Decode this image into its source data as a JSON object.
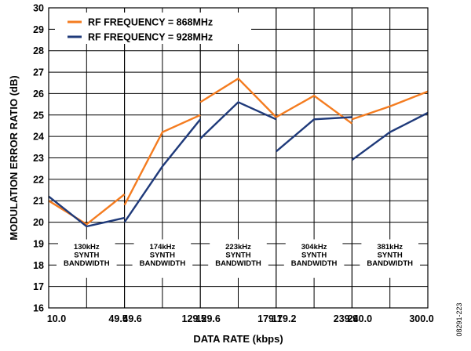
{
  "chart_data": {
    "type": "line",
    "xlabel": "DATA RATE (kbps)",
    "ylabel": "MODULATION ERROR RATIO (dB)",
    "ylim": [
      16,
      30
    ],
    "yticks": [
      "16",
      "17",
      "18",
      "19",
      "20",
      "21",
      "22",
      "23",
      "24",
      "25",
      "26",
      "27",
      "28",
      "29",
      "30"
    ],
    "xtick_labels": [
      "10.0",
      "49.5",
      "49.6",
      "129.5",
      "129.6",
      "179.1",
      "179.2",
      "239.9",
      "240.0",
      "300.0"
    ],
    "grid": true,
    "legend_position": "top-left",
    "colors": {
      "868": "#f47c20",
      "928": "#1f3a7a"
    },
    "groups": [
      {
        "label": [
          "130kHz",
          "SYNTH",
          "BANDWIDTH"
        ],
        "x": [
          10.0,
          29.75,
          49.5
        ]
      },
      {
        "label": [
          "174kHz",
          "SYNTH",
          "BANDWIDTH"
        ],
        "x": [
          49.6,
          89.55,
          129.5
        ]
      },
      {
        "label": [
          "223kHz",
          "SYNTH",
          "BANDWIDTH"
        ],
        "x": [
          129.6,
          154.35,
          179.1
        ]
      },
      {
        "label": [
          "304kHz",
          "SYNTH",
          "BANDWIDTH"
        ],
        "x": [
          179.2,
          209.55,
          239.9
        ]
      },
      {
        "label": [
          "381kHz",
          "SYNTH",
          "BANDWIDTH"
        ],
        "x": [
          240.0,
          270.0,
          300.0
        ]
      }
    ],
    "series": [
      {
        "name": "RF FREQUENCY = 868MHz",
        "values": [
          [
            21.0,
            19.9,
            21.3
          ],
          [
            20.8,
            24.2,
            25.0
          ],
          [
            25.6,
            26.7,
            24.9
          ],
          [
            24.9,
            25.9,
            24.6
          ],
          [
            24.8,
            25.4,
            26.1
          ]
        ]
      },
      {
        "name": "RF FREQUENCY = 928MHz",
        "values": [
          [
            21.2,
            19.8,
            20.2
          ],
          [
            20.0,
            22.6,
            24.8
          ],
          [
            23.9,
            25.6,
            24.8
          ],
          [
            23.3,
            24.8,
            24.9
          ],
          [
            22.9,
            24.2,
            25.1
          ]
        ]
      }
    ]
  },
  "figure_code": "08291-223"
}
